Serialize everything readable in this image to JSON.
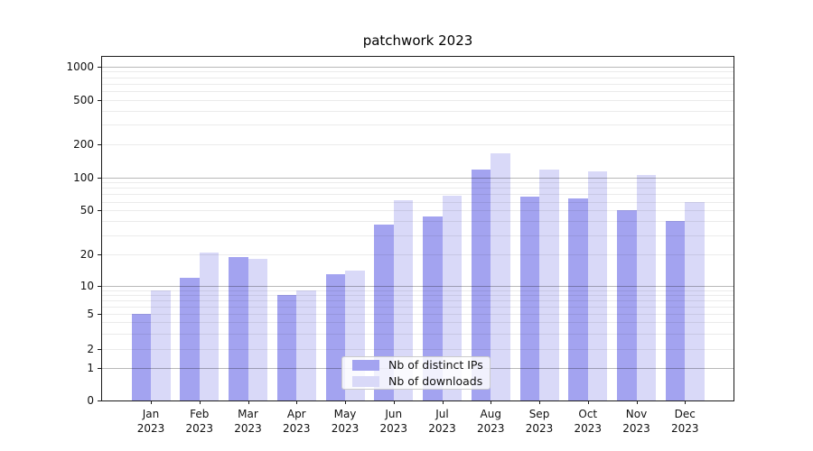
{
  "title": "patchwork 2023",
  "legend": {
    "items": [
      {
        "label": "Nb of distinct IPs",
        "color": "#a3a3f0"
      },
      {
        "label": "Nb of downloads",
        "color": "#d9d9f8"
      }
    ]
  },
  "chart_data": {
    "type": "bar",
    "title": "patchwork 2023",
    "categories": [
      "Jan 2023",
      "Feb 2023",
      "Mar 2023",
      "Apr 2023",
      "May 2023",
      "Jun 2023",
      "Jul 2023",
      "Aug 2023",
      "Sep 2023",
      "Oct 2023",
      "Nov 2023",
      "Dec 2023"
    ],
    "series": [
      {
        "name": "Nb of distinct IPs",
        "color": "#a3a3f0",
        "values": [
          5,
          12,
          19,
          8,
          13,
          37,
          44,
          118,
          67,
          64,
          50,
          40
        ]
      },
      {
        "name": "Nb of downloads",
        "color": "#d9d9f8",
        "values": [
          9,
          21,
          18,
          9,
          14,
          62,
          68,
          165,
          118,
          114,
          105,
          60
        ]
      }
    ],
    "yscale": "symlog",
    "yticks": [
      0,
      1,
      2,
      5,
      10,
      20,
      50,
      100,
      200,
      500,
      1000
    ],
    "ylim": [
      0,
      1200
    ],
    "grid": "horizontal",
    "legend_position": "lower center"
  }
}
